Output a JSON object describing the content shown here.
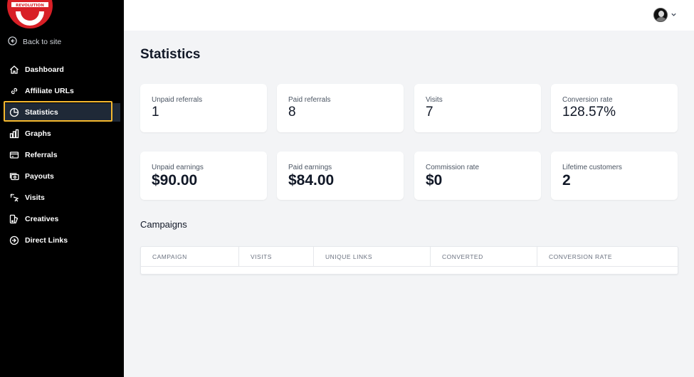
{
  "sidebar": {
    "logo_text": "REVOLUTION",
    "back_label": "Back to site",
    "items": [
      {
        "label": "Dashboard",
        "icon": "home-icon"
      },
      {
        "label": "Affiliate URLs",
        "icon": "link-icon"
      },
      {
        "label": "Statistics",
        "icon": "pie-chart-icon",
        "active": true
      },
      {
        "label": "Graphs",
        "icon": "bar-chart-icon"
      },
      {
        "label": "Referrals",
        "icon": "credit-card-icon"
      },
      {
        "label": "Payouts",
        "icon": "cash-icon"
      },
      {
        "label": "Visits",
        "icon": "cursor-click-icon"
      },
      {
        "label": "Creatives",
        "icon": "creatives-icon"
      },
      {
        "label": "Direct Links",
        "icon": "arrow-circle-right-icon"
      }
    ]
  },
  "header": {
    "avatar": "user-avatar",
    "menu_icon": "chevron-down-icon"
  },
  "main": {
    "title": "Statistics",
    "stats_row1": [
      {
        "label": "Unpaid referrals",
        "value": "1"
      },
      {
        "label": "Paid referrals",
        "value": "8"
      },
      {
        "label": "Visits",
        "value": "7"
      },
      {
        "label": "Conversion rate",
        "value": "128.57%"
      }
    ],
    "stats_row2": [
      {
        "label": "Unpaid earnings",
        "value": "$90.00"
      },
      {
        "label": "Paid earnings",
        "value": "$84.00"
      },
      {
        "label": "Commission rate",
        "value": "$0"
      },
      {
        "label": "Lifetime customers",
        "value": "2"
      }
    ],
    "campaigns": {
      "title": "Campaigns",
      "columns": [
        "CAMPAIGN",
        "VISITS",
        "UNIQUE LINKS",
        "CONVERTED",
        "CONVERSION RATE"
      ]
    }
  },
  "colors": {
    "sidebar_bg": "#000000",
    "active_bg": "#1f2937",
    "active_outline": "#f5b82e",
    "logo_red": "#d81f26",
    "page_bg": "#f3f4f6"
  }
}
